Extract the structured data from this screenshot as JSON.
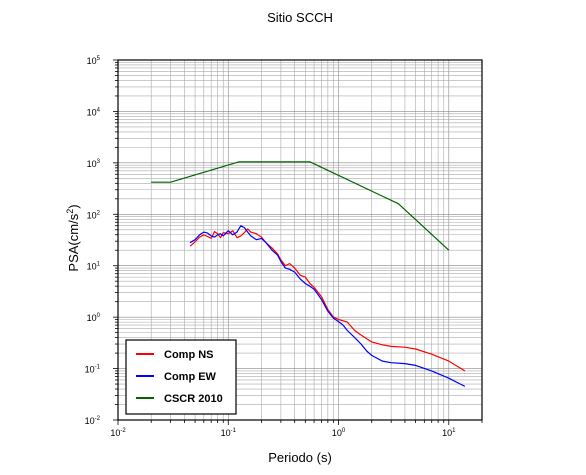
{
  "chart_data": {
    "type": "line",
    "title": "Sitio SCCH",
    "xlabel": "Periodo (s)",
    "ylabel_base": "PSA(cm/s",
    "ylabel_exp": "2",
    "ylabel_tail": ")",
    "x_scale": "log",
    "y_scale": "log",
    "xlim": [
      0.01,
      20
    ],
    "ylim": [
      0.01,
      100000
    ],
    "x_ticks": [
      {
        "base": "10",
        "exp": "-2",
        "value": 0.01
      },
      {
        "base": "10",
        "exp": "-1",
        "value": 0.1
      },
      {
        "base": "10",
        "exp": "0",
        "value": 1
      },
      {
        "base": "10",
        "exp": "1",
        "value": 10
      }
    ],
    "y_ticks": [
      {
        "base": "10",
        "exp": "-2",
        "value": 0.01
      },
      {
        "base": "10",
        "exp": "-1",
        "value": 0.1
      },
      {
        "base": "10",
        "exp": "0",
        "value": 1
      },
      {
        "base": "10",
        "exp": "1",
        "value": 10
      },
      {
        "base": "10",
        "exp": "2",
        "value": 100
      },
      {
        "base": "10",
        "exp": "3",
        "value": 1000
      },
      {
        "base": "10",
        "exp": "4",
        "value": 10000
      },
      {
        "base": "10",
        "exp": "5",
        "value": 100000
      }
    ],
    "grid": true,
    "legend_position": "bottom-left",
    "series": [
      {
        "name": "Comp NS",
        "color": "#ff0000",
        "points": [
          [
            0.045,
            24
          ],
          [
            0.05,
            29
          ],
          [
            0.055,
            36
          ],
          [
            0.06,
            40
          ],
          [
            0.065,
            37
          ],
          [
            0.07,
            34
          ],
          [
            0.075,
            46
          ],
          [
            0.08,
            42
          ],
          [
            0.085,
            35
          ],
          [
            0.09,
            44
          ],
          [
            0.1,
            42
          ],
          [
            0.11,
            48
          ],
          [
            0.12,
            35
          ],
          [
            0.13,
            38
          ],
          [
            0.14,
            44
          ],
          [
            0.15,
            52
          ],
          [
            0.16,
            45
          ],
          [
            0.18,
            42
          ],
          [
            0.2,
            36
          ],
          [
            0.22,
            28
          ],
          [
            0.25,
            22
          ],
          [
            0.28,
            17
          ],
          [
            0.3,
            13
          ],
          [
            0.33,
            10
          ],
          [
            0.36,
            11
          ],
          [
            0.4,
            9
          ],
          [
            0.45,
            6.5
          ],
          [
            0.5,
            6
          ],
          [
            0.55,
            4.5
          ],
          [
            0.6,
            3.8
          ],
          [
            0.7,
            2.5
          ],
          [
            0.8,
            1.4
          ],
          [
            0.9,
            1.0
          ],
          [
            1.0,
            0.9
          ],
          [
            1.1,
            0.85
          ],
          [
            1.2,
            0.8
          ],
          [
            1.4,
            0.55
          ],
          [
            1.6,
            0.45
          ],
          [
            1.8,
            0.38
          ],
          [
            2.0,
            0.33
          ],
          [
            2.5,
            0.29
          ],
          [
            3.0,
            0.27
          ],
          [
            4.0,
            0.26
          ],
          [
            5.0,
            0.24
          ],
          [
            7.0,
            0.19
          ],
          [
            10.0,
            0.14
          ],
          [
            14.0,
            0.09
          ]
        ]
      },
      {
        "name": "Comp EW",
        "color": "#0000ff",
        "points": [
          [
            0.045,
            28
          ],
          [
            0.05,
            32
          ],
          [
            0.055,
            40
          ],
          [
            0.06,
            45
          ],
          [
            0.065,
            43
          ],
          [
            0.07,
            38
          ],
          [
            0.075,
            36
          ],
          [
            0.08,
            40
          ],
          [
            0.085,
            42
          ],
          [
            0.09,
            38
          ],
          [
            0.1,
            48
          ],
          [
            0.11,
            40
          ],
          [
            0.12,
            45
          ],
          [
            0.13,
            60
          ],
          [
            0.14,
            55
          ],
          [
            0.15,
            45
          ],
          [
            0.16,
            38
          ],
          [
            0.18,
            32
          ],
          [
            0.2,
            34
          ],
          [
            0.22,
            28
          ],
          [
            0.25,
            20
          ],
          [
            0.28,
            16
          ],
          [
            0.3,
            12
          ],
          [
            0.33,
            9
          ],
          [
            0.36,
            8.5
          ],
          [
            0.4,
            7.5
          ],
          [
            0.45,
            5.5
          ],
          [
            0.5,
            4.5
          ],
          [
            0.55,
            4
          ],
          [
            0.6,
            3.5
          ],
          [
            0.7,
            2.2
          ],
          [
            0.8,
            1.3
          ],
          [
            0.9,
            0.95
          ],
          [
            1.0,
            0.82
          ],
          [
            1.1,
            0.7
          ],
          [
            1.2,
            0.55
          ],
          [
            1.4,
            0.4
          ],
          [
            1.6,
            0.3
          ],
          [
            1.8,
            0.22
          ],
          [
            2.0,
            0.18
          ],
          [
            2.5,
            0.14
          ],
          [
            3.0,
            0.13
          ],
          [
            4.0,
            0.125
          ],
          [
            5.0,
            0.115
          ],
          [
            7.0,
            0.09
          ],
          [
            10.0,
            0.065
          ],
          [
            14.0,
            0.045
          ]
        ]
      },
      {
        "name": "CSCR 2010",
        "color": "#006400",
        "points": [
          [
            0.02,
            420
          ],
          [
            0.03,
            420
          ],
          [
            0.125,
            1050
          ],
          [
            0.55,
            1050
          ],
          [
            3.5,
            160
          ],
          [
            10.0,
            20
          ]
        ]
      }
    ]
  }
}
